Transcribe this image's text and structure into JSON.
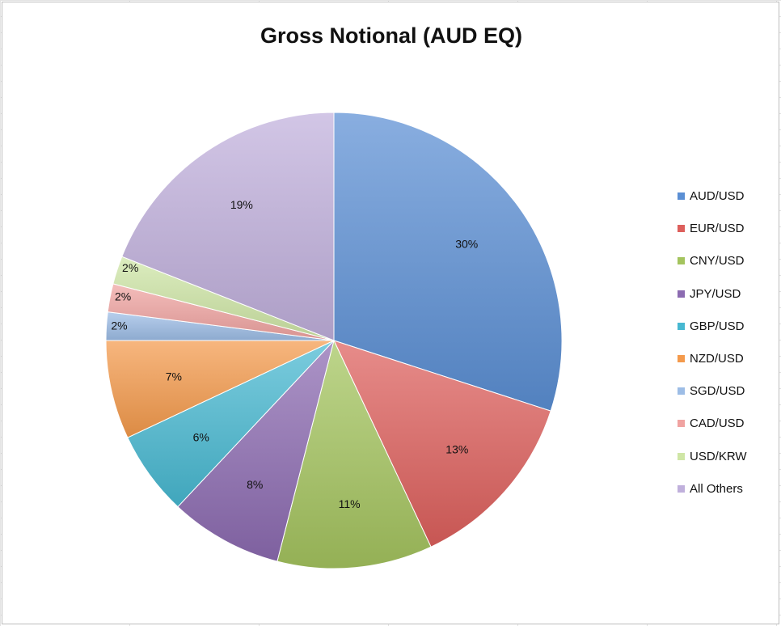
{
  "chart_data": {
    "type": "pie",
    "title": "Gross Notional (AUD EQ)",
    "slices": [
      {
        "label": "AUD/USD",
        "value": 30,
        "data_label": "30%",
        "color": "#5b8fd4"
      },
      {
        "label": "EUR/USD",
        "value": 13,
        "data_label": "13%",
        "color": "#dd5f5c"
      },
      {
        "label": "CNY/USD",
        "value": 11,
        "data_label": "11%",
        "color": "#a4c45e"
      },
      {
        "label": "JPY/USD",
        "value": 8,
        "data_label": "8%",
        "color": "#8c6bb1"
      },
      {
        "label": "GBP/USD",
        "value": 6,
        "data_label": "6%",
        "color": "#47b8d1"
      },
      {
        "label": "NZD/USD",
        "value": 7,
        "data_label": "7%",
        "color": "#f49a4c"
      },
      {
        "label": "SGD/USD",
        "value": 2,
        "data_label": "2%",
        "color": "#9dbde6"
      },
      {
        "label": "CAD/USD",
        "value": 2,
        "data_label": "2%",
        "color": "#f0a3a1"
      },
      {
        "label": "USD/KRW",
        "value": 2,
        "data_label": "2%",
        "color": "#cfe6a6"
      },
      {
        "label": "All Others",
        "value": 19,
        "data_label": "19%",
        "color": "#c0b0dc"
      }
    ],
    "start_angle": "12 o'clock",
    "direction": "clockwise",
    "legend_position": "right"
  }
}
